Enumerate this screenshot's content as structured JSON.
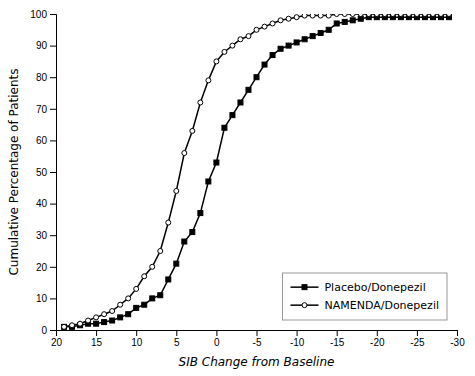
{
  "chart_data": {
    "type": "line",
    "xlabel": "SIB Change from Baseline",
    "ylabel": "Cumulative Percentage of Patients",
    "x": [
      19,
      18,
      17,
      16,
      15,
      14,
      13,
      12,
      11,
      10,
      9,
      8,
      7,
      6,
      5,
      4,
      3,
      2,
      1,
      0,
      -1,
      -2,
      -3,
      -4,
      -5,
      -6,
      -7,
      -8,
      -9,
      -10,
      -11,
      -12,
      -13,
      -14,
      -15,
      -16,
      -17,
      -18,
      -19,
      -20,
      -21,
      -22,
      -23,
      -24,
      -25,
      -26,
      -27,
      -28,
      -29
    ],
    "series": [
      {
        "name": "Placebo/Donepezil",
        "color": "#000000",
        "marker": "square",
        "values": [
          1,
          1,
          1.5,
          2,
          2,
          2.5,
          3,
          4,
          5,
          7,
          8,
          10,
          11,
          16,
          21,
          28,
          31,
          37,
          47,
          53,
          64,
          68,
          72,
          76,
          80,
          84,
          87,
          89,
          90,
          91,
          92,
          93,
          94,
          95,
          97,
          97.5,
          98,
          98.5,
          99,
          99,
          99,
          99,
          99,
          99,
          99,
          99,
          99,
          99,
          99
        ]
      },
      {
        "name": "NAMENDA/Donepezil",
        "color": "#000000",
        "marker": "circle",
        "values": [
          1,
          1.5,
          2,
          3,
          4,
          5,
          6,
          8,
          10,
          13,
          17,
          20,
          25,
          34,
          44,
          56,
          63,
          72,
          79,
          85,
          88,
          90,
          92,
          93,
          95,
          96,
          97,
          98,
          98.5,
          99,
          99.5,
          99.5,
          99.5,
          99.5,
          100,
          100,
          100,
          100,
          100,
          100,
          100,
          100,
          100,
          100,
          100,
          100,
          100,
          100,
          100
        ]
      }
    ],
    "xlim": [
      20,
      -30
    ],
    "ylim": [
      0,
      100
    ],
    "xticks": [
      20,
      15,
      10,
      5,
      0,
      -5,
      -10,
      -15,
      -20,
      -25,
      -30
    ],
    "yticks": [
      0,
      10,
      20,
      30,
      40,
      50,
      60,
      70,
      80,
      90,
      100
    ],
    "grid": false,
    "legend": "lower right",
    "background_color": "#ffffff"
  }
}
